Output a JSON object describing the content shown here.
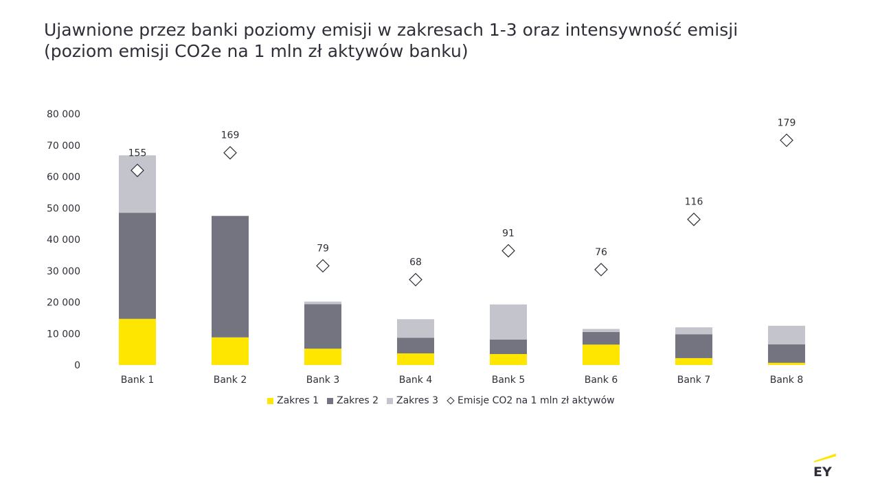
{
  "title": {
    "line1": "Ujawnione przez banki poziomy emisji w zakresach 1-3 oraz intensywność emisji",
    "line2": "(poziom emisji CO2e na 1 mln zł aktywów banku)"
  },
  "colors": {
    "zakres1": "#ffe600",
    "zakres2": "#747480",
    "zakres3": "#c4c4cd",
    "marker_stroke": "#2e2e38",
    "text": "#2e2e38"
  },
  "chart_data": {
    "type": "bar",
    "stacked": true,
    "categories": [
      "Bank 1",
      "Bank 2",
      "Bank 3",
      "Bank 4",
      "Bank 5",
      "Bank 6",
      "Bank 7",
      "Bank 8"
    ],
    "series": [
      {
        "name": "Zakres 1",
        "values": [
          14700,
          8800,
          5200,
          3700,
          3500,
          6500,
          2200,
          700
        ]
      },
      {
        "name": "Zakres 2",
        "values": [
          33800,
          38700,
          14200,
          5000,
          4600,
          4000,
          7600,
          5900
        ]
      },
      {
        "name": "Zakres 3",
        "values": [
          18300,
          0,
          800,
          5900,
          11200,
          1000,
          2200,
          5900
        ]
      }
    ],
    "markers": {
      "name": "Emisje CO2 na 1 mln zł aktywów",
      "values": [
        155,
        169,
        79,
        68,
        91,
        76,
        116,
        179
      ],
      "labels": [
        "155",
        "169",
        "79",
        "68",
        "91",
        "76",
        "116",
        "179"
      ]
    },
    "y_ticks": [
      "0",
      "10 000",
      "20 000",
      "30 000",
      "40 000",
      "50 000",
      "60 000",
      "70 000",
      "80 000"
    ],
    "ylim": [
      0,
      80000
    ],
    "secondary_ylim": [
      0,
      200
    ],
    "grid": false,
    "legend_position": "bottom"
  },
  "legend": {
    "zakres1": "Zakres 1",
    "zakres2": "Zakres 2",
    "zakres3": "Zakres 3",
    "markers": "Emisje CO2 na 1 mln zł aktywów"
  },
  "logo": {
    "text": "EY"
  }
}
